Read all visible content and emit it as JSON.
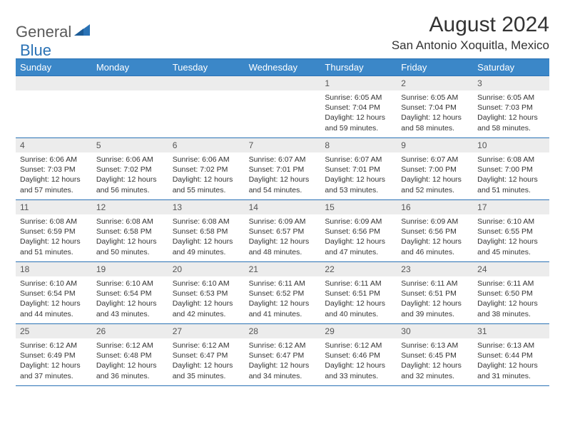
{
  "logo": {
    "general": "General",
    "blue": "Blue"
  },
  "header": {
    "month_title": "August 2024",
    "location": "San Antonio Xoquitla, Mexico"
  },
  "colors": {
    "header_bg": "#3b87c8",
    "header_border": "#2a72b5",
    "daynum_bg": "#ececec",
    "text": "#333333",
    "logo_gray": "#5a5a5a",
    "logo_blue": "#2a72b5",
    "page_bg": "#ffffff"
  },
  "typography": {
    "month_title_fontsize": 30,
    "location_fontsize": 17,
    "dayheader_fontsize": 13,
    "daynum_fontsize": 12,
    "cell_fontsize": 10.5
  },
  "days_of_week": [
    "Sunday",
    "Monday",
    "Tuesday",
    "Wednesday",
    "Thursday",
    "Friday",
    "Saturday"
  ],
  "weeks": [
    [
      {
        "day": "",
        "lines": []
      },
      {
        "day": "",
        "lines": []
      },
      {
        "day": "",
        "lines": []
      },
      {
        "day": "",
        "lines": []
      },
      {
        "day": "1",
        "lines": [
          "Sunrise: 6:05 AM",
          "Sunset: 7:04 PM",
          "Daylight: 12 hours",
          "and 59 minutes."
        ]
      },
      {
        "day": "2",
        "lines": [
          "Sunrise: 6:05 AM",
          "Sunset: 7:04 PM",
          "Daylight: 12 hours",
          "and 58 minutes."
        ]
      },
      {
        "day": "3",
        "lines": [
          "Sunrise: 6:05 AM",
          "Sunset: 7:03 PM",
          "Daylight: 12 hours",
          "and 58 minutes."
        ]
      }
    ],
    [
      {
        "day": "4",
        "lines": [
          "Sunrise: 6:06 AM",
          "Sunset: 7:03 PM",
          "Daylight: 12 hours",
          "and 57 minutes."
        ]
      },
      {
        "day": "5",
        "lines": [
          "Sunrise: 6:06 AM",
          "Sunset: 7:02 PM",
          "Daylight: 12 hours",
          "and 56 minutes."
        ]
      },
      {
        "day": "6",
        "lines": [
          "Sunrise: 6:06 AM",
          "Sunset: 7:02 PM",
          "Daylight: 12 hours",
          "and 55 minutes."
        ]
      },
      {
        "day": "7",
        "lines": [
          "Sunrise: 6:07 AM",
          "Sunset: 7:01 PM",
          "Daylight: 12 hours",
          "and 54 minutes."
        ]
      },
      {
        "day": "8",
        "lines": [
          "Sunrise: 6:07 AM",
          "Sunset: 7:01 PM",
          "Daylight: 12 hours",
          "and 53 minutes."
        ]
      },
      {
        "day": "9",
        "lines": [
          "Sunrise: 6:07 AM",
          "Sunset: 7:00 PM",
          "Daylight: 12 hours",
          "and 52 minutes."
        ]
      },
      {
        "day": "10",
        "lines": [
          "Sunrise: 6:08 AM",
          "Sunset: 7:00 PM",
          "Daylight: 12 hours",
          "and 51 minutes."
        ]
      }
    ],
    [
      {
        "day": "11",
        "lines": [
          "Sunrise: 6:08 AM",
          "Sunset: 6:59 PM",
          "Daylight: 12 hours",
          "and 51 minutes."
        ]
      },
      {
        "day": "12",
        "lines": [
          "Sunrise: 6:08 AM",
          "Sunset: 6:58 PM",
          "Daylight: 12 hours",
          "and 50 minutes."
        ]
      },
      {
        "day": "13",
        "lines": [
          "Sunrise: 6:08 AM",
          "Sunset: 6:58 PM",
          "Daylight: 12 hours",
          "and 49 minutes."
        ]
      },
      {
        "day": "14",
        "lines": [
          "Sunrise: 6:09 AM",
          "Sunset: 6:57 PM",
          "Daylight: 12 hours",
          "and 48 minutes."
        ]
      },
      {
        "day": "15",
        "lines": [
          "Sunrise: 6:09 AM",
          "Sunset: 6:56 PM",
          "Daylight: 12 hours",
          "and 47 minutes."
        ]
      },
      {
        "day": "16",
        "lines": [
          "Sunrise: 6:09 AM",
          "Sunset: 6:56 PM",
          "Daylight: 12 hours",
          "and 46 minutes."
        ]
      },
      {
        "day": "17",
        "lines": [
          "Sunrise: 6:10 AM",
          "Sunset: 6:55 PM",
          "Daylight: 12 hours",
          "and 45 minutes."
        ]
      }
    ],
    [
      {
        "day": "18",
        "lines": [
          "Sunrise: 6:10 AM",
          "Sunset: 6:54 PM",
          "Daylight: 12 hours",
          "and 44 minutes."
        ]
      },
      {
        "day": "19",
        "lines": [
          "Sunrise: 6:10 AM",
          "Sunset: 6:54 PM",
          "Daylight: 12 hours",
          "and 43 minutes."
        ]
      },
      {
        "day": "20",
        "lines": [
          "Sunrise: 6:10 AM",
          "Sunset: 6:53 PM",
          "Daylight: 12 hours",
          "and 42 minutes."
        ]
      },
      {
        "day": "21",
        "lines": [
          "Sunrise: 6:11 AM",
          "Sunset: 6:52 PM",
          "Daylight: 12 hours",
          "and 41 minutes."
        ]
      },
      {
        "day": "22",
        "lines": [
          "Sunrise: 6:11 AM",
          "Sunset: 6:51 PM",
          "Daylight: 12 hours",
          "and 40 minutes."
        ]
      },
      {
        "day": "23",
        "lines": [
          "Sunrise: 6:11 AM",
          "Sunset: 6:51 PM",
          "Daylight: 12 hours",
          "and 39 minutes."
        ]
      },
      {
        "day": "24",
        "lines": [
          "Sunrise: 6:11 AM",
          "Sunset: 6:50 PM",
          "Daylight: 12 hours",
          "and 38 minutes."
        ]
      }
    ],
    [
      {
        "day": "25",
        "lines": [
          "Sunrise: 6:12 AM",
          "Sunset: 6:49 PM",
          "Daylight: 12 hours",
          "and 37 minutes."
        ]
      },
      {
        "day": "26",
        "lines": [
          "Sunrise: 6:12 AM",
          "Sunset: 6:48 PM",
          "Daylight: 12 hours",
          "and 36 minutes."
        ]
      },
      {
        "day": "27",
        "lines": [
          "Sunrise: 6:12 AM",
          "Sunset: 6:47 PM",
          "Daylight: 12 hours",
          "and 35 minutes."
        ]
      },
      {
        "day": "28",
        "lines": [
          "Sunrise: 6:12 AM",
          "Sunset: 6:47 PM",
          "Daylight: 12 hours",
          "and 34 minutes."
        ]
      },
      {
        "day": "29",
        "lines": [
          "Sunrise: 6:12 AM",
          "Sunset: 6:46 PM",
          "Daylight: 12 hours",
          "and 33 minutes."
        ]
      },
      {
        "day": "30",
        "lines": [
          "Sunrise: 6:13 AM",
          "Sunset: 6:45 PM",
          "Daylight: 12 hours",
          "and 32 minutes."
        ]
      },
      {
        "day": "31",
        "lines": [
          "Sunrise: 6:13 AM",
          "Sunset: 6:44 PM",
          "Daylight: 12 hours",
          "and 31 minutes."
        ]
      }
    ]
  ]
}
